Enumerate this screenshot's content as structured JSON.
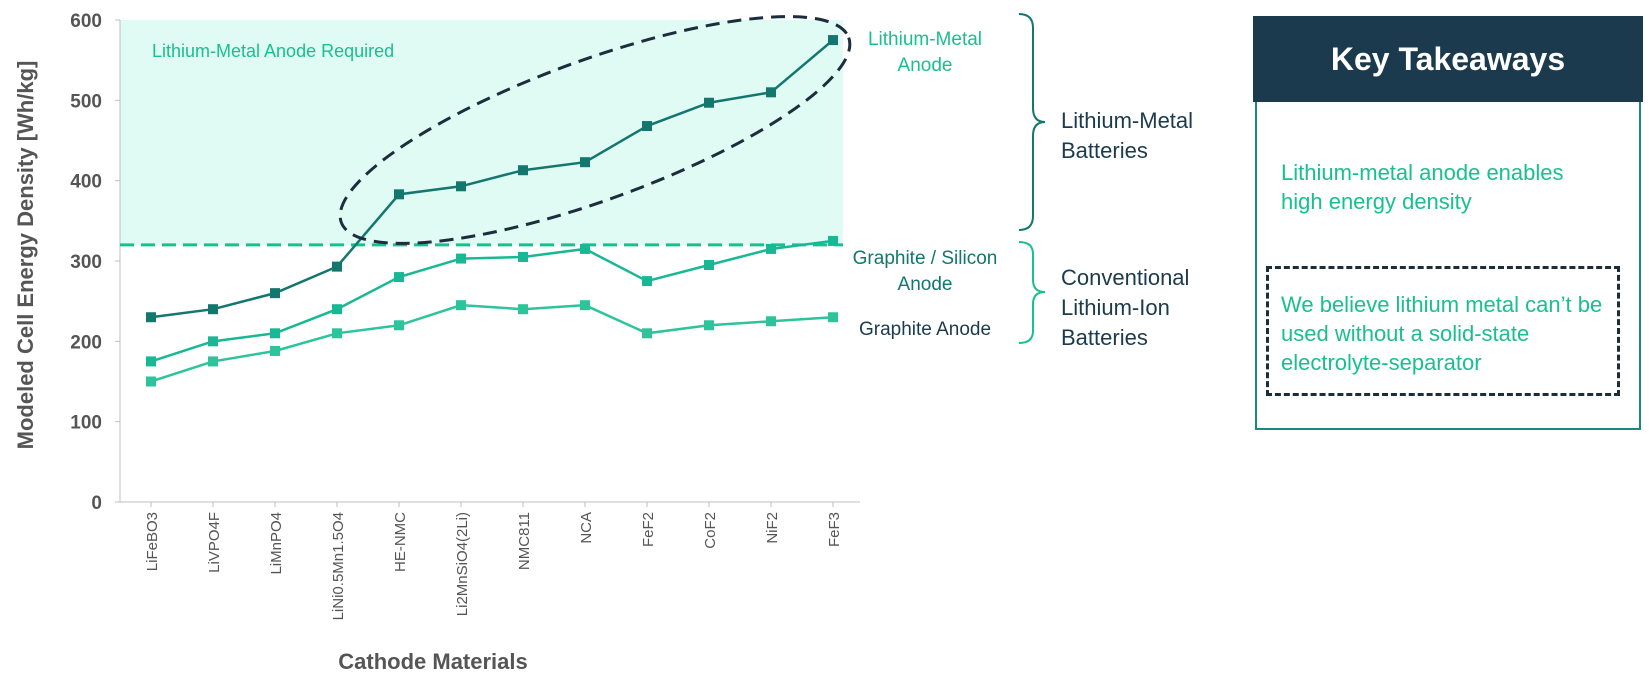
{
  "chart_data": {
    "type": "line",
    "title": "",
    "xlabel": "Cathode Materials",
    "ylabel": "Modeled Cell Energy Density [Wh/kg]",
    "ylim": [
      0,
      600
    ],
    "yticks": [
      0,
      100,
      200,
      300,
      400,
      500,
      600
    ],
    "categories": [
      "LiFeBO3",
      "LiVPO4F",
      "LiMnPO4",
      "LiNi0.5Mn1.5O4",
      "HE-NMC",
      "Li2MnSiO4(2Li)",
      "NMC811",
      "NCA",
      "FeF2",
      "CoF2",
      "NiF2",
      "FeF3"
    ],
    "series": [
      {
        "name": "Lithium-Metal Anode",
        "color": "#13766f",
        "values": [
          230,
          240,
          260,
          293,
          383,
          393,
          413,
          423,
          468,
          497,
          510,
          575
        ]
      },
      {
        "name": "Graphite / Silicon Anode",
        "color": "#19b894",
        "values": [
          175,
          200,
          210,
          240,
          280,
          303,
          305,
          315,
          275,
          295,
          315,
          325
        ]
      },
      {
        "name": "Graphite Anode",
        "color": "#2dc49c",
        "values": [
          150,
          175,
          188,
          210,
          220,
          245,
          240,
          245,
          210,
          220,
          225,
          230
        ]
      }
    ],
    "threshold": {
      "value": 320,
      "color": "#19c08f"
    },
    "region_label": "Lithium-Metal Anode Required",
    "grid": false,
    "legend": "right, labels next to series ends"
  },
  "groups": {
    "lithium_metal": "Lithium-Metal Batteries",
    "conventional": "Conventional Lithium-Ion Batteries"
  },
  "panel": {
    "title": "Key Takeaways",
    "point1": "Lithium-metal anode enables high energy density",
    "point2": "We believe lithium metal can’t be used without a solid-state electrolyte-separator"
  },
  "colors": {
    "axis_text": "#555555",
    "dark_navy": "#1c3a4e",
    "fill_region": "#e0fbf4",
    "ellipse": "#1c2d3c"
  }
}
